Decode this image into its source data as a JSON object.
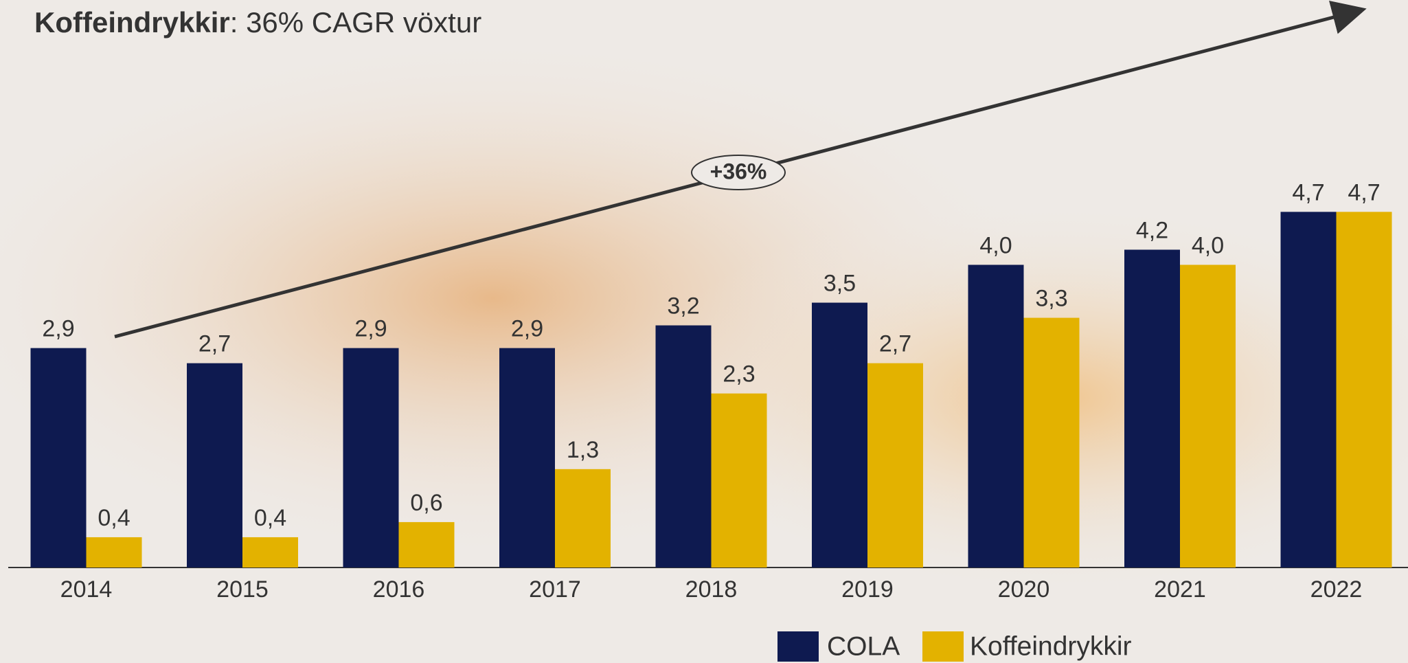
{
  "chart_data": {
    "type": "bar",
    "title": {
      "bold": "Koffeindrykkir",
      "rest": ": 36% CAGR vöxtur"
    },
    "annotation": "+36%",
    "categories": [
      "2014",
      "2015",
      "2016",
      "2017",
      "2018",
      "2019",
      "2020",
      "2021",
      "2022"
    ],
    "series": [
      {
        "name": "COLA",
        "color": "#0e1a50",
        "values": [
          2.9,
          2.7,
          2.9,
          2.9,
          3.2,
          3.5,
          4.0,
          4.2,
          4.7
        ],
        "value_labels": [
          "2,9",
          "2,7",
          "2,9",
          "2,9",
          "3,2",
          "3,5",
          "4,0",
          "4,2",
          "4,7"
        ]
      },
      {
        "name": "Koffeindrykkir",
        "color": "#e3b200",
        "values": [
          0.4,
          0.4,
          0.6,
          1.3,
          2.3,
          2.7,
          3.3,
          4.0,
          4.7
        ],
        "value_labels": [
          "0,4",
          "0,4",
          "0,6",
          "1,3",
          "2,3",
          "2,7",
          "3,3",
          "4,0",
          "4,7"
        ]
      }
    ],
    "ylim": [
      0,
      7.5
    ]
  }
}
